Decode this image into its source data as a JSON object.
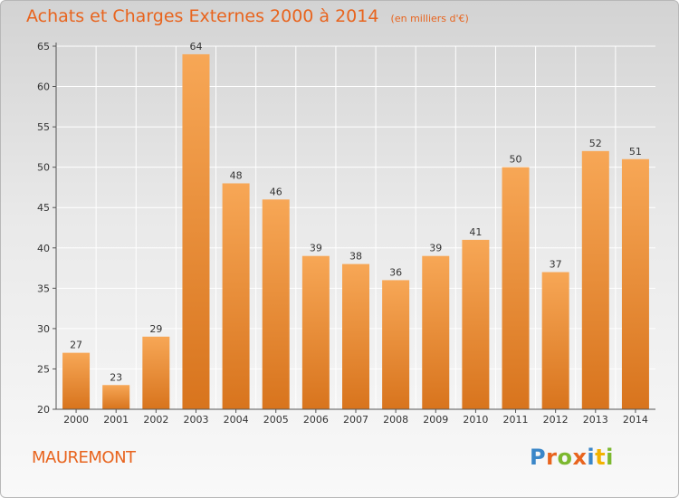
{
  "header": {
    "title": "Achats et Charges Externes 2000 à 2014",
    "unit": "(en milliers d'€)"
  },
  "footer": {
    "commune": "MAUREMONT",
    "logo": {
      "letters": [
        "P",
        "r",
        "o",
        "x",
        "i",
        "t",
        "i"
      ],
      "colors": [
        "#3a86c8",
        "#e8641e",
        "#7cb82f",
        "#e8641e",
        "#3a86c8",
        "#f2b200",
        "#7cb82f"
      ]
    }
  },
  "chart_data": {
    "type": "bar",
    "title": "Achats et Charges Externes 2000 à 2014",
    "subtitle": "(en milliers d'€)",
    "categories": [
      "2000",
      "2001",
      "2002",
      "2003",
      "2004",
      "2005",
      "2006",
      "2007",
      "2008",
      "2009",
      "2010",
      "2011",
      "2012",
      "2013",
      "2014"
    ],
    "values": [
      27,
      23,
      29,
      64,
      48,
      46,
      39,
      38,
      36,
      39,
      41,
      50,
      37,
      52,
      51
    ],
    "ylim": [
      20,
      65
    ],
    "yticks": [
      20,
      25,
      30,
      35,
      40,
      45,
      50,
      55,
      60,
      65
    ],
    "grid": true,
    "colors": {
      "bar_light": "#f7a756",
      "bar_dark": "#d8741d",
      "grid": "#ffffff",
      "axis": "#555555"
    }
  }
}
